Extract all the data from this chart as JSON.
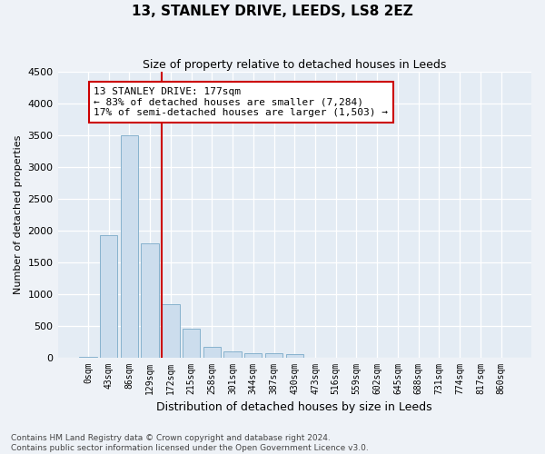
{
  "title": "13, STANLEY DRIVE, LEEDS, LS8 2EZ",
  "subtitle": "Size of property relative to detached houses in Leeds",
  "xlabel": "Distribution of detached houses by size in Leeds",
  "ylabel": "Number of detached properties",
  "bar_color": "#ccdded",
  "bar_edge_color": "#7aaac8",
  "categories": [
    "0sqm",
    "43sqm",
    "86sqm",
    "129sqm",
    "172sqm",
    "215sqm",
    "258sqm",
    "301sqm",
    "344sqm",
    "387sqm",
    "430sqm",
    "473sqm",
    "516sqm",
    "559sqm",
    "602sqm",
    "645sqm",
    "688sqm",
    "731sqm",
    "774sqm",
    "817sqm",
    "860sqm"
  ],
  "values": [
    15,
    1920,
    3500,
    1800,
    840,
    450,
    160,
    95,
    70,
    60,
    55,
    0,
    0,
    0,
    0,
    0,
    0,
    0,
    0,
    0,
    0
  ],
  "ylim": [
    0,
    4500
  ],
  "yticks": [
    0,
    500,
    1000,
    1500,
    2000,
    2500,
    3000,
    3500,
    4000,
    4500
  ],
  "vline_index": 4,
  "annotation_line1": "13 STANLEY DRIVE: 177sqm",
  "annotation_line2": "← 83% of detached houses are smaller (7,284)",
  "annotation_line3": "17% of semi-detached houses are larger (1,503) →",
  "footer_text": "Contains HM Land Registry data © Crown copyright and database right 2024.\nContains public sector information licensed under the Open Government Licence v3.0.",
  "background_color": "#eef2f7",
  "plot_bg_color": "#e4ecf4",
  "grid_color": "#ffffff",
  "annotation_box_facecolor": "#ffffff",
  "annotation_box_edgecolor": "#cc0000",
  "vline_color": "#cc0000",
  "title_fontsize": 11,
  "subtitle_fontsize": 9,
  "ylabel_fontsize": 8,
  "xlabel_fontsize": 9,
  "ytick_fontsize": 8,
  "xtick_fontsize": 7,
  "footer_fontsize": 6.5,
  "annotation_fontsize": 8
}
